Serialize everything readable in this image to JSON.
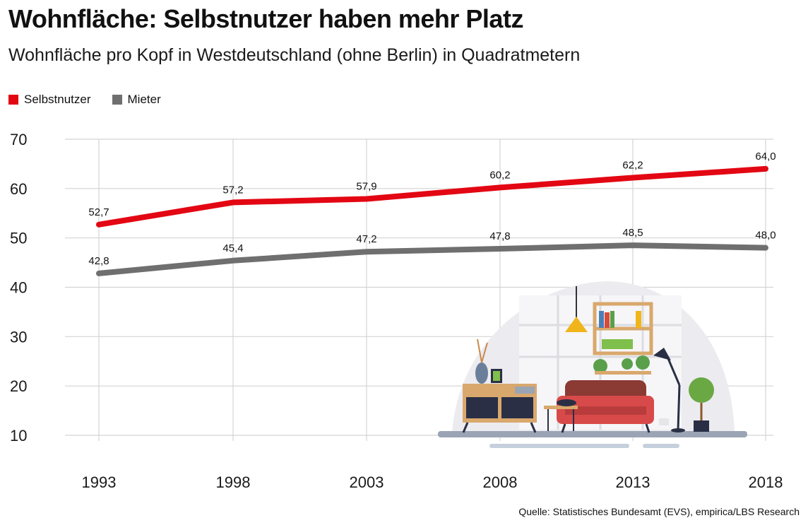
{
  "header": {
    "title": "Wohnfläche: Selbstnutzer haben mehr Platz",
    "subtitle": "Wohnfläche pro Kopf in Westdeutschland (ohne Berlin) in Quadratmetern"
  },
  "legend": {
    "items": [
      {
        "label": "Selbstnutzer",
        "color": "#e30613"
      },
      {
        "label": "Mieter",
        "color": "#6f6f6f"
      }
    ]
  },
  "source": "Quelle: Statistisches Bundesamt (EVS), empirica/LBS Research",
  "illustration": "living-room-illustration",
  "chart_data": {
    "type": "line",
    "categories": [
      "1993",
      "1998",
      "2003",
      "2008",
      "2013",
      "2018"
    ],
    "ylim": [
      10,
      70
    ],
    "yticks": [
      10,
      20,
      30,
      40,
      50,
      60,
      70
    ],
    "grid": true,
    "legend_position": "top-left",
    "series": [
      {
        "name": "Selbstnutzer",
        "color": "#e30613",
        "values": [
          52.7,
          57.2,
          57.9,
          60.2,
          62.2,
          64.0
        ],
        "labels": [
          "52,7",
          "57,2",
          "57,9",
          "60,2",
          "62,2",
          "64,0"
        ]
      },
      {
        "name": "Mieter",
        "color": "#6f6f6f",
        "values": [
          42.8,
          45.4,
          47.2,
          47.8,
          48.5,
          48.0
        ],
        "labels": [
          "42,8",
          "45,4",
          "47,2",
          "47,8",
          "48,5",
          "48,0"
        ]
      }
    ]
  }
}
